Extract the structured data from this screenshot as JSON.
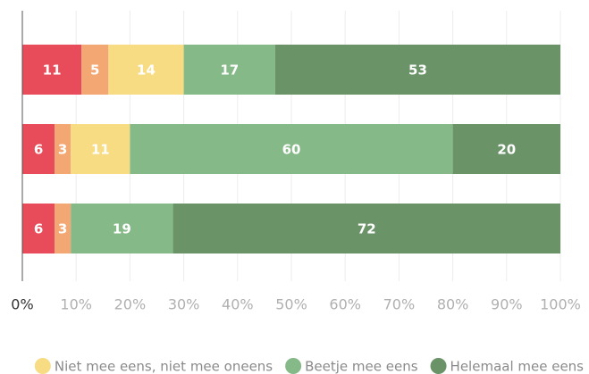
{
  "chart_data": {
    "type": "stacked-bar-horizontal",
    "categories": [
      null,
      null,
      null
    ],
    "series": [
      {
        "color": "#e84c5a",
        "values": [
          11,
          6,
          6
        ]
      },
      {
        "color": "#f3a772",
        "values": [
          5,
          3,
          3
        ]
      },
      {
        "name": "Niet mee eens, niet mee oneens",
        "color": "#f7dc83",
        "values": [
          14,
          11,
          0
        ]
      },
      {
        "name": "Beetje mee eens",
        "color": "#86b988",
        "values": [
          17,
          60,
          19
        ]
      },
      {
        "name": "Helemaal mee eens",
        "color": "#6a9367",
        "values": [
          53,
          20,
          72
        ]
      }
    ],
    "xlim": [
      0,
      100
    ],
    "xticks": [
      {
        "value": 0,
        "label": "0%"
      },
      {
        "value": 10,
        "label": "10%"
      },
      {
        "value": 20,
        "label": "20%"
      },
      {
        "value": 30,
        "label": "30%"
      },
      {
        "value": 40,
        "label": "40%"
      },
      {
        "value": 50,
        "label": "50%"
      },
      {
        "value": 60,
        "label": "60%"
      },
      {
        "value": 70,
        "label": "70%"
      },
      {
        "value": 80,
        "label": "80%"
      },
      {
        "value": 90,
        "label": "90%"
      },
      {
        "value": 100,
        "label": "100%"
      }
    ],
    "grid": true
  }
}
